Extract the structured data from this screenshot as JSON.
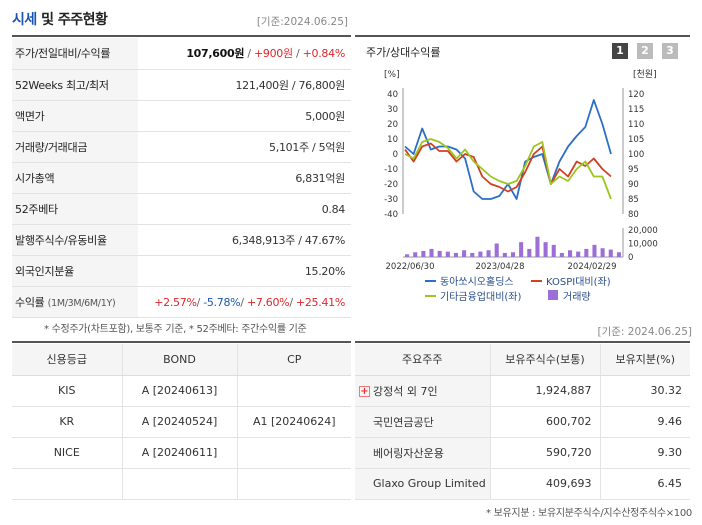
{
  "header": {
    "title_part1": "시세",
    "title_part2": " 및 주주현황",
    "base_date": "[기준:2024.06.25]"
  },
  "quote_table": [
    {
      "key": "주가/전일대비/수익률",
      "v1": "107,600원",
      "v2": "+900원",
      "v3": "+0.84%"
    },
    {
      "key": "52Weeks 최고/최저",
      "value": "121,400원 / 76,800원"
    },
    {
      "key": "액면가",
      "value": "5,000원"
    },
    {
      "key": "거래량/거래대금",
      "value": "5,101주 / 5억원"
    },
    {
      "key": "시가총액",
      "value": "6,831억원"
    },
    {
      "key": "52주베타",
      "value": "0.84"
    },
    {
      "key": "발행주식수/유동비율",
      "value": "6,348,913주 / 47.67%"
    },
    {
      "key": "외국인지분율",
      "value": "15.20%"
    },
    {
      "key": "수익률",
      "key_sub": "(1M/3M/6M/1Y)",
      "r1": "+2.57%",
      "r2": "-5.78%",
      "r3": "+7.60%",
      "r4": "+25.41%"
    }
  ],
  "footnote": "* 수정주가(차트포함), 보통주 기준, * 52주베타: 주간수익률 기준",
  "chart_panel": {
    "title": "주가/상대수익률",
    "buttons": [
      "1",
      "2",
      "3"
    ]
  },
  "chart_data": {
    "type": "line",
    "left_axis_unit": "[%]",
    "right_axis_unit": "[천원]",
    "left_ticks": [
      "40",
      "30",
      "20",
      "10",
      "0",
      "-10",
      "-20",
      "-30",
      "-40"
    ],
    "right_ticks": [
      "120",
      "115",
      "110",
      "105",
      "100",
      "95",
      "90",
      "85",
      "80"
    ],
    "volume_ticks": [
      "20,000",
      "10,000",
      "0"
    ],
    "x_ticks": [
      "2022/06/30",
      "2023/04/28",
      "2024/02/29"
    ],
    "ylim_left": [
      -40,
      40
    ],
    "ylim_right": [
      80,
      120
    ],
    "series": [
      {
        "name": "동아쏘시오홀딩스",
        "color": "#2b6fc7",
        "values": [
          5,
          0,
          17,
          3,
          5,
          5,
          3,
          -3,
          -25,
          -30,
          -30,
          -28,
          -20,
          -30,
          -5,
          -2,
          0,
          -20,
          -5,
          5,
          12,
          18,
          36,
          20,
          0
        ]
      },
      {
        "name": "KOSPI대비(좌)",
        "color": "#d2401f",
        "values": [
          3,
          -5,
          5,
          7,
          2,
          2,
          -5,
          0,
          -2,
          -15,
          -20,
          -22,
          -25,
          -22,
          -12,
          0,
          5,
          -20,
          -10,
          -15,
          -5,
          -8,
          -3,
          -10,
          -15
        ]
      },
      {
        "name": "기타금융업대비(좌)",
        "color": "#9dc520",
        "values": [
          0,
          -3,
          8,
          10,
          8,
          4,
          -3,
          3,
          -5,
          -10,
          -15,
          -18,
          -20,
          -18,
          -8,
          5,
          8,
          -20,
          -15,
          -18,
          -10,
          -5,
          -15,
          -15,
          -30
        ]
      }
    ],
    "volume": {
      "name": "거래량",
      "color": "#9c6fd6",
      "values": [
        2000,
        3500,
        4500,
        6000,
        4500,
        4000,
        3000,
        5000,
        3000,
        4000,
        5000,
        10000,
        3000,
        3500,
        11000,
        6000,
        15000,
        11000,
        9000,
        3000,
        5000,
        4000,
        6000,
        9000,
        6500,
        5500,
        3500
      ]
    }
  },
  "legend": [
    {
      "label": "동아쏘시오홀딩스",
      "type": "line",
      "color": "#2b6fc7"
    },
    {
      "label": "KOSPI대비(좌)",
      "type": "line",
      "color": "#d2401f"
    },
    {
      "label": "기타금융업대비(좌)",
      "type": "line",
      "color": "#9dc520"
    },
    {
      "label": "거래량",
      "type": "box",
      "color": "#9c6fd6"
    }
  ],
  "right_base_date": "[기준: 2024.06.25]",
  "credit": {
    "headers": [
      "신용등급",
      "BOND",
      "CP"
    ],
    "rows": [
      [
        "KIS",
        "A [20240613]",
        ""
      ],
      [
        "KR",
        "A [20240524]",
        "A1 [20240624]"
      ],
      [
        "NICE",
        "A [20240611]",
        ""
      ],
      [
        "",
        "",
        ""
      ]
    ]
  },
  "holders": {
    "headers": [
      "주요주주",
      "보유주식수(보통)",
      "보유지분(%)"
    ],
    "rows": [
      {
        "name": "강정석 외 7인",
        "shares": "1,924,887",
        "pct": "30.32",
        "expandable": true
      },
      {
        "name": "국민연금공단",
        "shares": "600,702",
        "pct": "9.46"
      },
      {
        "name": "베어링자산운용",
        "shares": "590,720",
        "pct": "9.30"
      },
      {
        "name": "Glaxo Group Limited",
        "shares": "409,693",
        "pct": "6.45"
      }
    ],
    "footnote": "* 보유지분 : 보유지분주식수/지수산정주식수×100"
  }
}
